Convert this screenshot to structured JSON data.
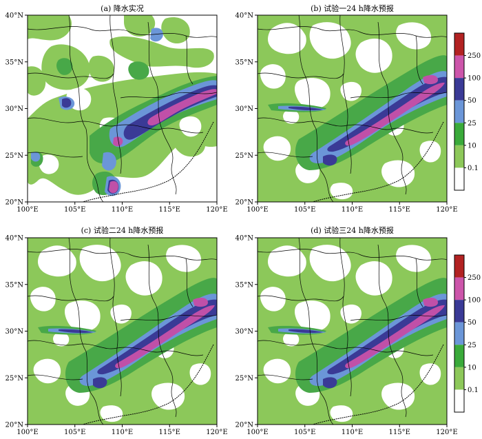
{
  "panels": [
    {
      "title": "(a) 降水实况"
    },
    {
      "title": "(b) 试验一24 h降水预报"
    },
    {
      "title": "(c) 试验二24 h降水预报"
    },
    {
      "title": "(d) 试验三24 h降水预报"
    }
  ],
  "axes": {
    "lon_ticks": [
      "100°E",
      "105°E",
      "110°E",
      "115°E",
      "120°E"
    ],
    "lat_ticks": [
      "40°N",
      "35°N",
      "30°N",
      "25°N",
      "20°N"
    ]
  },
  "colorbar": {
    "labels": [
      "250",
      "100",
      "50",
      "25",
      "10",
      "0.1"
    ],
    "colors": [
      "#b22222",
      "#cc55aa",
      "#3a3a96",
      "#6b96d8",
      "#3aaa3a",
      "#8dc85a",
      "#ffffff"
    ]
  },
  "map_colors": {
    "light_green": "#8cc85a",
    "green": "#48a848",
    "light_blue": "#6b96d8",
    "navy": "#3a3a96",
    "magenta": "#c050a8"
  }
}
